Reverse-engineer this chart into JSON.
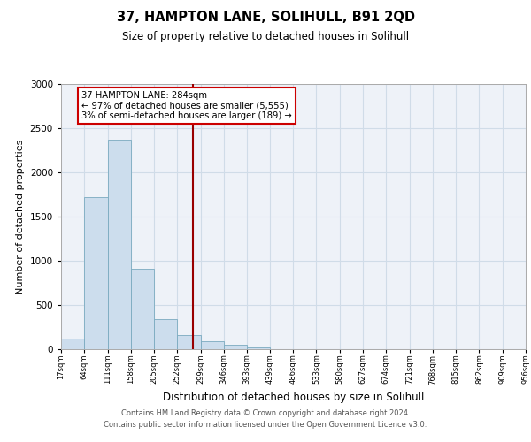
{
  "title": "37, HAMPTON LANE, SOLIHULL, B91 2QD",
  "subtitle": "Size of property relative to detached houses in Solihull",
  "xlabel": "Distribution of detached houses by size in Solihull",
  "ylabel": "Number of detached properties",
  "bar_color": "#ccdded",
  "bar_edge_color": "#7aaabf",
  "bin_edges": [
    17,
    64,
    111,
    158,
    205,
    252,
    299,
    346,
    393,
    439,
    486,
    533,
    580,
    627,
    674,
    721,
    768,
    815,
    862,
    909,
    956
  ],
  "bin_labels": [
    "17sqm",
    "64sqm",
    "111sqm",
    "158sqm",
    "205sqm",
    "252sqm",
    "299sqm",
    "346sqm",
    "393sqm",
    "439sqm",
    "486sqm",
    "533sqm",
    "580sqm",
    "627sqm",
    "674sqm",
    "721sqm",
    "768sqm",
    "815sqm",
    "862sqm",
    "909sqm",
    "956sqm"
  ],
  "bar_heights": [
    120,
    1720,
    2370,
    910,
    340,
    160,
    90,
    55,
    25,
    0,
    0,
    0,
    0,
    0,
    0,
    0,
    0,
    0,
    0,
    0
  ],
  "property_size": 284,
  "vline_color": "#990000",
  "annotation_line1": "37 HAMPTON LANE: 284sqm",
  "annotation_line2": "← 97% of detached houses are smaller (5,555)",
  "annotation_line3": "3% of semi-detached houses are larger (189) →",
  "annotation_box_color": "#ffffff",
  "annotation_box_edge": "#cc0000",
  "ylim": [
    0,
    3000
  ],
  "yticks": [
    0,
    500,
    1000,
    1500,
    2000,
    2500,
    3000
  ],
  "grid_color": "#d0dce8",
  "background_color": "#eef2f8",
  "footer_line1": "Contains HM Land Registry data © Crown copyright and database right 2024.",
  "footer_line2": "Contains public sector information licensed under the Open Government Licence v3.0."
}
